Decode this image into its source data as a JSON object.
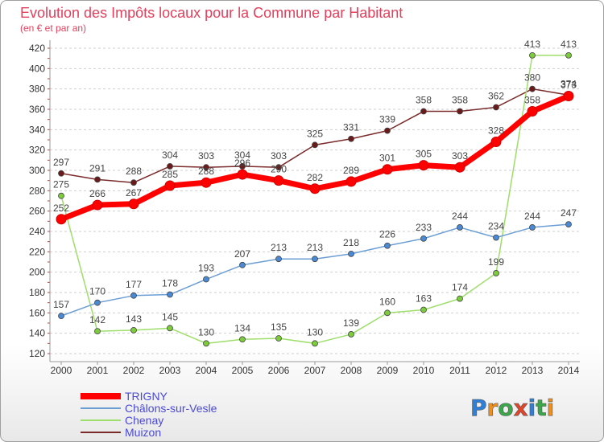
{
  "logo": {
    "text": "Proxiti",
    "colors": [
      "#2f7fd6",
      "#f0901c",
      "#3aa84a",
      "#e0472a",
      "#2f7fd6",
      "#3aa84a",
      "#f0901c"
    ]
  },
  "chart_data": {
    "type": "line",
    "title": "Evolution des Impôts locaux pour la Commune par Habitant",
    "subtitle": "(en € et par an)",
    "xlabel": "",
    "ylabel": "",
    "x": [
      2000,
      2001,
      2002,
      2003,
      2004,
      2005,
      2006,
      2007,
      2008,
      2009,
      2010,
      2011,
      2012,
      2013,
      2014
    ],
    "ylim": [
      120,
      420
    ],
    "yticks": [
      120,
      140,
      160,
      180,
      200,
      220,
      240,
      260,
      280,
      300,
      320,
      340,
      360,
      380,
      400,
      420
    ],
    "grid": true,
    "legend_position": "bottom-left",
    "series": [
      {
        "name": "TRIGNY",
        "color": "#ff0000",
        "marker_color": "#ff0000",
        "values": [
          252,
          266,
          267,
          285,
          288,
          296,
          290,
          282,
          289,
          301,
          305,
          303,
          328,
          358,
          373
        ]
      },
      {
        "name": "Châlons-sur-Vesle",
        "color": "#6b9fd4",
        "marker_color": "#4a8ad4",
        "values": [
          157,
          170,
          177,
          178,
          193,
          207,
          213,
          213,
          218,
          226,
          233,
          244,
          234,
          244,
          247
        ]
      },
      {
        "name": "Chenay",
        "color": "#9ede6a",
        "marker_color": "#7ccc3c",
        "values": [
          275,
          142,
          143,
          145,
          130,
          134,
          135,
          130,
          139,
          160,
          163,
          174,
          199,
          413,
          413
        ]
      },
      {
        "name": "Muizon",
        "color": "#7b2a2a",
        "marker_color": "#6b1a1a",
        "values": [
          297,
          291,
          288,
          304,
          303,
          304,
          303,
          325,
          331,
          339,
          358,
          358,
          362,
          380,
          374
        ]
      }
    ]
  }
}
